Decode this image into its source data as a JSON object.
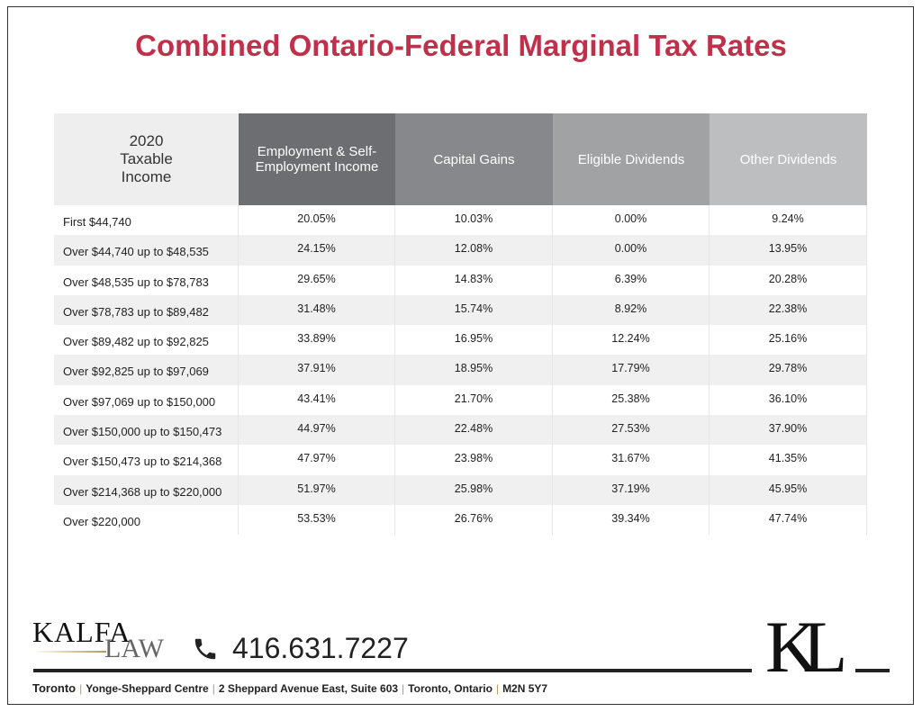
{
  "title": "Combined Ontario-Federal Marginal Tax Rates",
  "table": {
    "columns": [
      "2020 Taxable Income",
      "Employment & Self-Employment Income",
      "Capital Gains",
      "Eligible Dividends",
      "Other Dividends"
    ],
    "rows": [
      [
        "First $44,740",
        "20.05%",
        "10.03%",
        "0.00%",
        "9.24%"
      ],
      [
        "Over $44,740 up to $48,535",
        "24.15%",
        "12.08%",
        "0.00%",
        "13.95%"
      ],
      [
        "Over $48,535 up to $78,783",
        "29.65%",
        "14.83%",
        "6.39%",
        "20.28%"
      ],
      [
        "Over $78,783 up to $89,482",
        "31.48%",
        "15.74%",
        "8.92%",
        "22.38%"
      ],
      [
        "Over $89,482 up to $92,825",
        "33.89%",
        "16.95%",
        "12.24%",
        "25.16%"
      ],
      [
        "Over $92,825 up to $97,069",
        "37.91%",
        "18.95%",
        "17.79%",
        "29.78%"
      ],
      [
        "Over $97,069 up to $150,000",
        "43.41%",
        "21.70%",
        "25.38%",
        "36.10%"
      ],
      [
        "Over $150,000 up to $150,473",
        "44.97%",
        "22.48%",
        "27.53%",
        "37.90%"
      ],
      [
        "Over $150,473 up to $214,368",
        "47.97%",
        "23.98%",
        "31.67%",
        "41.35%"
      ],
      [
        "Over $214,368 up to $220,000",
        "51.97%",
        "25.98%",
        "37.19%",
        "45.95%"
      ],
      [
        "Over $220,000",
        "53.53%",
        "26.76%",
        "39.34%",
        "47.74%"
      ]
    ]
  },
  "footer": {
    "logo_top": "KALFA",
    "logo_bottom": "LAW",
    "phone": "416.631.7227",
    "monogram": "KL",
    "separator": "|",
    "address": [
      "Toronto",
      "Yonge-Sheppard Centre",
      "2 Sheppard Avenue East, Suite 603",
      "Toronto, Ontario",
      "M2N 5Y7"
    ]
  }
}
